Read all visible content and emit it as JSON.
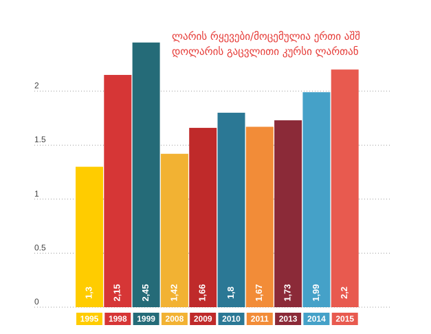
{
  "chart_data": {
    "type": "bar",
    "title_lines": [
      "ლარის რყევები/მოცემულია ერთი აშშ",
      "დოლარის გაცვლითი კურსი ლართან"
    ],
    "categories": [
      "1995",
      "1998",
      "1999",
      "2008",
      "2009",
      "2010",
      "2011",
      "2013",
      "2014",
      "2015"
    ],
    "values": [
      1.3,
      2.15,
      2.45,
      1.42,
      1.66,
      1.8,
      1.67,
      1.73,
      1.99,
      2.2
    ],
    "value_labels": [
      "1,3",
      "2,15",
      "2,45",
      "1,42",
      "1,66",
      "1,8",
      "1,67",
      "1,73",
      "1,99",
      "2,2"
    ],
    "colors": [
      "#ffcc00",
      "#d63636",
      "#256b78",
      "#f2b233",
      "#bf2a2a",
      "#2b7895",
      "#f28c38",
      "#8b2a38",
      "#45a1c8",
      "#e85a4f"
    ],
    "y_ticks": [
      {
        "value": 0,
        "label": "0"
      },
      {
        "value": 0.5,
        "label": "0.5"
      },
      {
        "value": 1,
        "label": "1"
      },
      {
        "value": 1.5,
        "label": "1.5"
      },
      {
        "value": 2,
        "label": "2"
      }
    ],
    "ylim": [
      0,
      2.5
    ],
    "grid": true,
    "xlabel": "",
    "ylabel": ""
  }
}
